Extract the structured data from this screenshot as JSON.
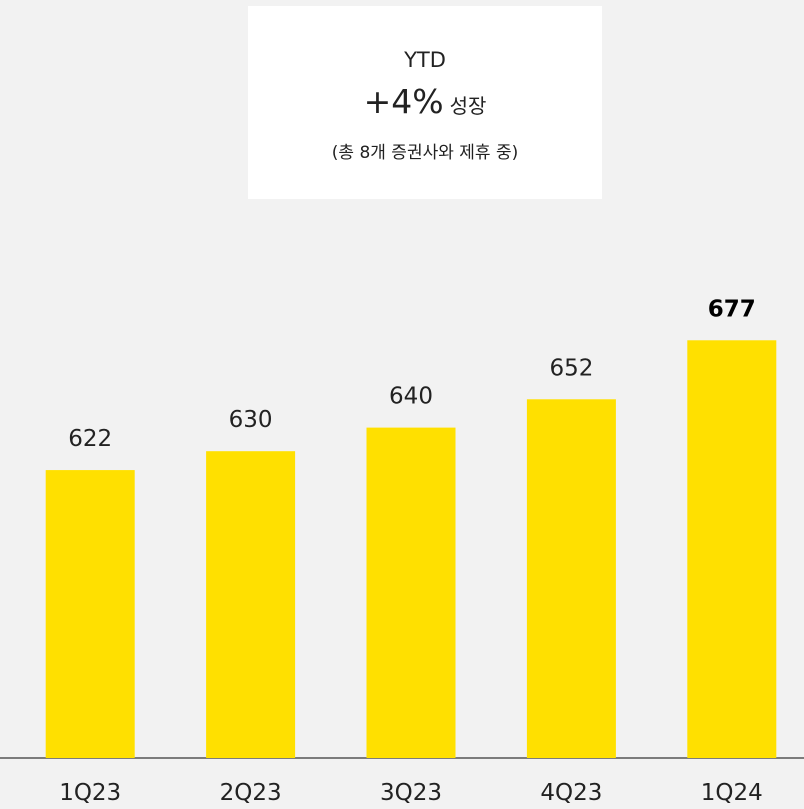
{
  "chart_data": {
    "type": "bar",
    "box": {
      "title": "YTD",
      "headline": "+4%",
      "headline_suffix": "성장",
      "note": "(총 8개 증권사와 제휴 중)"
    },
    "categories": [
      "1Q23",
      "2Q23",
      "3Q23",
      "4Q23",
      "1Q24"
    ],
    "values": [
      622,
      630,
      640,
      652,
      677
    ],
    "color": "#ffe000",
    "ylim": [
      500,
      700
    ]
  }
}
